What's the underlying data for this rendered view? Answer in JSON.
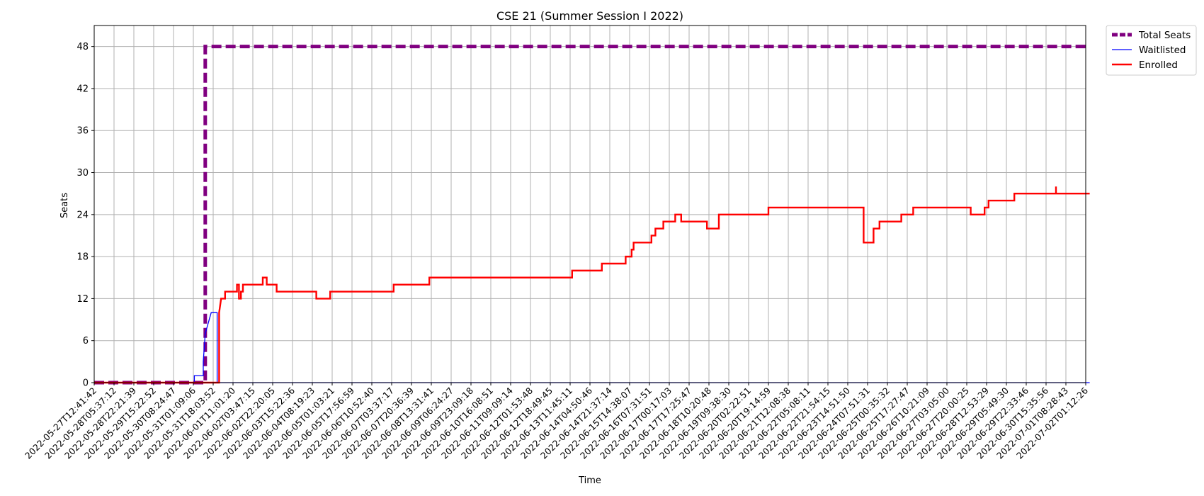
{
  "chart_data": {
    "type": "line",
    "title": "CSE 21 (Summer Session I 2022)",
    "xlabel": "Time",
    "ylabel": "Seats",
    "ylim": [
      0,
      51
    ],
    "yticks": [
      0,
      6,
      12,
      18,
      24,
      30,
      36,
      42,
      48
    ],
    "grid": true,
    "legend_placement": "outside-top-right",
    "x_ticks": [
      "2022-05-27T12:41:42",
      "2022-05-28T05:37:12",
      "2022-05-28T22:21:39",
      "2022-05-29T15:22:52",
      "2022-05-30T08:24:47",
      "2022-05-31T01:09:06",
      "2022-05-31T18:03:52",
      "2022-06-01T11:01:20",
      "2022-06-02T03:47:15",
      "2022-06-02T22:20:05",
      "2022-06-03T15:22:36",
      "2022-06-04T08:19:23",
      "2022-06-05T01:03:21",
      "2022-06-05T17:56:59",
      "2022-06-06T10:52:40",
      "2022-06-07T03:37:17",
      "2022-06-07T20:36:39",
      "2022-06-08T13:31:41",
      "2022-06-09T06:24:27",
      "2022-06-09T23:09:18",
      "2022-06-10T16:08:51",
      "2022-06-11T09:09:14",
      "2022-06-12T01:53:48",
      "2022-06-12T18:49:45",
      "2022-06-13T11:45:11",
      "2022-06-14T04:50:46",
      "2022-06-14T21:37:14",
      "2022-06-15T14:38:07",
      "2022-06-16T07:31:51",
      "2022-06-17T00:17:03",
      "2022-06-17T17:25:47",
      "2022-06-18T10:20:48",
      "2022-06-19T09:38:30",
      "2022-06-20T02:22:51",
      "2022-06-20T19:14:59",
      "2022-06-21T12:08:38",
      "2022-06-22T05:08:11",
      "2022-06-22T21:54:15",
      "2022-06-23T14:51:50",
      "2022-06-24T07:51:31",
      "2022-06-25T00:35:32",
      "2022-06-25T17:27:47",
      "2022-06-26T10:21:09",
      "2022-06-27T03:05:00",
      "2022-06-27T20:00:25",
      "2022-06-28T12:53:29",
      "2022-06-29T05:49:30",
      "2022-06-29T22:33:46",
      "2022-06-30T15:35:56",
      "2022-07-01T08:28:43",
      "2022-07-02T01:12:26"
    ],
    "series": [
      {
        "name": "Total Seats",
        "color": "#800080",
        "style": "dashed",
        "points": [
          [
            0,
            0
          ],
          [
            5.6,
            0
          ],
          [
            5.6,
            48
          ],
          [
            50.2,
            48
          ]
        ]
      },
      {
        "name": "Waitlisted",
        "color": "#0000ff",
        "style": "solid",
        "points": [
          [
            0,
            0
          ],
          [
            5.05,
            0
          ],
          [
            5.05,
            1
          ],
          [
            5.5,
            1
          ],
          [
            5.5,
            3
          ],
          [
            5.55,
            5
          ],
          [
            5.6,
            7
          ],
          [
            5.7,
            8
          ],
          [
            5.8,
            9
          ],
          [
            5.9,
            10
          ],
          [
            6.2,
            10
          ],
          [
            6.2,
            0
          ],
          [
            50.2,
            0
          ]
        ]
      },
      {
        "name": "Enrolled",
        "color": "#ff0000",
        "style": "solid",
        "points": [
          [
            0,
            0
          ],
          [
            6.3,
            0
          ],
          [
            6.3,
            10
          ],
          [
            6.35,
            11
          ],
          [
            6.4,
            12
          ],
          [
            6.6,
            12
          ],
          [
            6.6,
            13
          ],
          [
            7.2,
            13
          ],
          [
            7.2,
            14
          ],
          [
            7.3,
            14
          ],
          [
            7.3,
            12
          ],
          [
            7.4,
            12
          ],
          [
            7.4,
            13
          ],
          [
            7.5,
            13
          ],
          [
            7.5,
            14
          ],
          [
            8.5,
            14
          ],
          [
            8.5,
            15
          ],
          [
            8.7,
            15
          ],
          [
            8.7,
            14
          ],
          [
            9.2,
            14
          ],
          [
            9.2,
            13
          ],
          [
            11.2,
            13
          ],
          [
            11.2,
            12
          ],
          [
            11.9,
            12
          ],
          [
            11.9,
            13
          ],
          [
            15.1,
            13
          ],
          [
            15.1,
            14
          ],
          [
            16.9,
            14
          ],
          [
            16.9,
            15
          ],
          [
            24.1,
            15
          ],
          [
            24.1,
            16
          ],
          [
            25.6,
            16
          ],
          [
            25.6,
            17
          ],
          [
            26.8,
            17
          ],
          [
            26.8,
            18
          ],
          [
            27.1,
            18
          ],
          [
            27.1,
            19
          ],
          [
            27.2,
            19
          ],
          [
            27.2,
            20
          ],
          [
            28.1,
            20
          ],
          [
            28.1,
            21
          ],
          [
            28.3,
            21
          ],
          [
            28.3,
            22
          ],
          [
            28.7,
            22
          ],
          [
            28.7,
            23
          ],
          [
            29.3,
            23
          ],
          [
            29.3,
            24
          ],
          [
            29.6,
            24
          ],
          [
            29.6,
            23
          ],
          [
            30.9,
            23
          ],
          [
            30.9,
            22
          ],
          [
            31.5,
            22
          ],
          [
            31.5,
            24
          ],
          [
            34.0,
            24
          ],
          [
            34.0,
            25
          ],
          [
            38.8,
            25
          ],
          [
            38.8,
            20
          ],
          [
            39.3,
            20
          ],
          [
            39.3,
            22
          ],
          [
            39.6,
            22
          ],
          [
            39.6,
            23
          ],
          [
            40.7,
            23
          ],
          [
            40.7,
            24
          ],
          [
            41.3,
            24
          ],
          [
            41.3,
            25
          ],
          [
            44.2,
            25
          ],
          [
            44.2,
            24
          ],
          [
            44.9,
            24
          ],
          [
            44.9,
            25
          ],
          [
            45.1,
            25
          ],
          [
            45.1,
            26
          ],
          [
            46.4,
            26
          ],
          [
            46.4,
            27
          ],
          [
            48.5,
            27
          ],
          [
            48.5,
            28
          ],
          [
            48.5,
            27
          ],
          [
            50.2,
            27
          ]
        ]
      }
    ]
  }
}
